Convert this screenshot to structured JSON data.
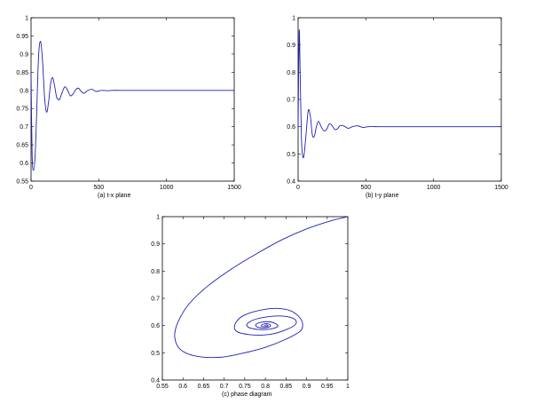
{
  "chart_data": [
    {
      "id": "a",
      "type": "line",
      "caption": "(a)   t-x  plane",
      "xlim": [
        0,
        1500
      ],
      "ylim": [
        0.55,
        1
      ],
      "xticks": [
        0,
        500,
        1000,
        1500
      ],
      "yticks": [
        0.55,
        0.6,
        0.65,
        0.7,
        0.75,
        0.8,
        0.85,
        0.9,
        0.95,
        1
      ],
      "xtick_labels": [
        "0",
        "500",
        "1000",
        "1500"
      ],
      "ytick_labels": [
        "0.55",
        "0.6",
        "0.65",
        "0.7",
        "0.75",
        "0.8",
        "0.85",
        "0.9",
        "0.95",
        "1"
      ],
      "series": [
        {
          "x": [
            0,
            8,
            20,
            30,
            40,
            55,
            70,
            85,
            100,
            115,
            130,
            145,
            160,
            175,
            190,
            210,
            230,
            250,
            270,
            290,
            310,
            330,
            350,
            370,
            390,
            420,
            450,
            480,
            520,
            560,
            600,
            700,
            800,
            900,
            1000,
            1200,
            1500
          ],
          "y": [
            0.85,
            0.62,
            0.58,
            0.62,
            0.72,
            0.89,
            0.935,
            0.88,
            0.78,
            0.74,
            0.77,
            0.82,
            0.835,
            0.81,
            0.78,
            0.775,
            0.795,
            0.81,
            0.8,
            0.785,
            0.79,
            0.802,
            0.806,
            0.797,
            0.792,
            0.8,
            0.803,
            0.797,
            0.8,
            0.799,
            0.8,
            0.8,
            0.8,
            0.8,
            0.8,
            0.8,
            0.8
          ]
        }
      ]
    },
    {
      "id": "b",
      "type": "line",
      "caption": "(b)   t-y  plane",
      "xlim": [
        0,
        1500
      ],
      "ylim": [
        0.4,
        1
      ],
      "xticks": [
        0,
        500,
        1000,
        1500
      ],
      "yticks": [
        0.4,
        0.5,
        0.6,
        0.7,
        0.8,
        0.9,
        1
      ],
      "xtick_labels": [
        "0",
        "500",
        "1000",
        "1500"
      ],
      "ytick_labels": [
        "0.4",
        "0.5",
        "0.6",
        "0.7",
        "0.8",
        "0.9",
        "1"
      ],
      "series": [
        {
          "x": [
            0,
            8,
            15,
            25,
            35,
            45,
            60,
            75,
            90,
            105,
            120,
            135,
            150,
            170,
            190,
            210,
            230,
            250,
            270,
            290,
            310,
            340,
            370,
            400,
            440,
            480,
            520,
            600,
            700,
            800,
            1000,
            1500
          ],
          "y": [
            0.6,
            0.95,
            0.8,
            0.55,
            0.49,
            0.5,
            0.58,
            0.66,
            0.64,
            0.57,
            0.565,
            0.6,
            0.62,
            0.6,
            0.585,
            0.59,
            0.61,
            0.605,
            0.59,
            0.592,
            0.604,
            0.602,
            0.594,
            0.6,
            0.603,
            0.597,
            0.6,
            0.6,
            0.6,
            0.6,
            0.6,
            0.6
          ]
        }
      ]
    },
    {
      "id": "c",
      "type": "line",
      "caption": "(c)   phase diagram",
      "xlim": [
        0.55,
        1
      ],
      "ylim": [
        0.4,
        1
      ],
      "xticks": [
        0.55,
        0.6,
        0.65,
        0.7,
        0.75,
        0.8,
        0.85,
        0.9,
        0.95,
        1
      ],
      "yticks": [
        0.4,
        0.5,
        0.6,
        0.7,
        0.8,
        0.9,
        1
      ],
      "xtick_labels": [
        "0.55",
        "0.6",
        "0.65",
        "0.7",
        "0.75",
        "0.8",
        "0.85",
        "0.9",
        "0.95",
        "1"
      ],
      "ytick_labels": [
        "0.4",
        "0.5",
        "0.6",
        "0.7",
        "0.8",
        "0.9",
        "1"
      ],
      "series": [
        {
          "x": [
            1.0,
            0.96,
            0.9,
            0.84,
            0.78,
            0.72,
            0.66,
            0.615,
            0.59,
            0.58,
            0.585,
            0.6,
            0.625,
            0.66,
            0.7,
            0.75,
            0.8,
            0.85,
            0.885,
            0.89,
            0.88,
            0.86,
            0.83,
            0.8,
            0.77,
            0.745,
            0.73,
            0.725,
            0.735,
            0.76,
            0.79,
            0.82,
            0.85,
            0.87,
            0.875,
            0.865,
            0.84,
            0.81,
            0.78,
            0.76,
            0.755,
            0.765,
            0.79,
            0.815,
            0.83,
            0.825,
            0.81,
            0.79,
            0.777,
            0.78,
            0.795,
            0.81,
            0.812,
            0.805,
            0.795,
            0.79,
            0.797,
            0.806,
            0.805,
            0.799,
            0.8
          ],
          "y": [
            1.0,
            0.985,
            0.955,
            0.915,
            0.865,
            0.81,
            0.745,
            0.68,
            0.62,
            0.57,
            0.53,
            0.505,
            0.49,
            0.483,
            0.485,
            0.5,
            0.52,
            0.55,
            0.58,
            0.61,
            0.635,
            0.655,
            0.663,
            0.66,
            0.65,
            0.635,
            0.615,
            0.59,
            0.575,
            0.567,
            0.565,
            0.57,
            0.585,
            0.6,
            0.615,
            0.628,
            0.635,
            0.633,
            0.625,
            0.612,
            0.6,
            0.59,
            0.585,
            0.588,
            0.597,
            0.607,
            0.614,
            0.612,
            0.604,
            0.595,
            0.591,
            0.595,
            0.602,
            0.607,
            0.605,
            0.599,
            0.596,
            0.598,
            0.602,
            0.601,
            0.6
          ]
        }
      ]
    }
  ]
}
